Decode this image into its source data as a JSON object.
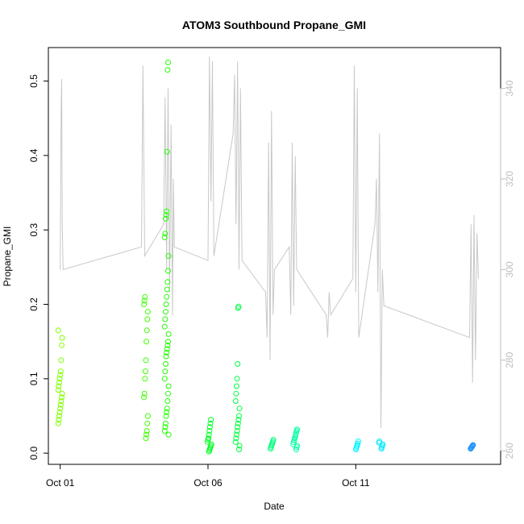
{
  "chart_data": {
    "type": "scatter",
    "title": "ATOM3 Southbound Propane_GMI",
    "xlabel": "Date",
    "ylabel": "Propane_GMI",
    "x_axis": {
      "ticks": [
        "Oct 01",
        "Oct 06",
        "Oct 11"
      ],
      "tick_values": [
        1,
        6,
        11
      ],
      "xlim": [
        0.6,
        15.9
      ]
    },
    "y_axis": {
      "ticks": [
        "0.0",
        "0.1",
        "0.2",
        "0.3",
        "0.4",
        "0.5"
      ],
      "tick_values": [
        0,
        0.1,
        0.2,
        0.3,
        0.4,
        0.5
      ],
      "ylim": [
        -0.015,
        0.545
      ]
    },
    "y2_axis": {
      "ticks": [
        "260",
        "280",
        "300",
        "320",
        "340"
      ],
      "tick_values": [
        260,
        280,
        300,
        320,
        340
      ],
      "ylim": [
        257,
        349
      ],
      "color": "#bdbdbd"
    },
    "grid": false,
    "point_clusters": [
      {
        "x": 1.0,
        "color": "#80ff00",
        "values": [
          0.04,
          0.045,
          0.05,
          0.055,
          0.06,
          0.065,
          0.07,
          0.075,
          0.08,
          0.085,
          0.09,
          0.095,
          0.1,
          0.105,
          0.11,
          0.125,
          0.145,
          0.155,
          0.165
        ]
      },
      {
        "x": 3.9,
        "color": "#3fff00",
        "values": [
          0.02,
          0.025,
          0.03,
          0.04,
          0.05,
          0.075,
          0.08,
          0.1,
          0.11,
          0.125,
          0.15,
          0.165,
          0.18,
          0.19,
          0.2,
          0.205,
          0.21
        ]
      },
      {
        "x": 4.6,
        "color": "#20ff00",
        "values": [
          0.025,
          0.03,
          0.035,
          0.04,
          0.05,
          0.055,
          0.06,
          0.07,
          0.08,
          0.09,
          0.1,
          0.11,
          0.12,
          0.13,
          0.135,
          0.14,
          0.145,
          0.15,
          0.16,
          0.17,
          0.18,
          0.19,
          0.2,
          0.21,
          0.22,
          0.23,
          0.245,
          0.265,
          0.29,
          0.295,
          0.315,
          0.32,
          0.325,
          0.405,
          0.515,
          0.525
        ]
      },
      {
        "x": 6.05,
        "color": "#00ff20",
        "values": [
          0.002,
          0.004,
          0.006,
          0.008,
          0.01,
          0.012,
          0.015,
          0.018,
          0.02,
          0.025,
          0.03,
          0.035,
          0.04,
          0.045
        ]
      },
      {
        "x": 7.0,
        "color": "#00ff40",
        "values": [
          0.005,
          0.01,
          0.015,
          0.02,
          0.025,
          0.03,
          0.035,
          0.04,
          0.045,
          0.05,
          0.06,
          0.07,
          0.08,
          0.09,
          0.1,
          0.12,
          0.195,
          0.197
        ]
      },
      {
        "x": 8.15,
        "color": "#00ff7a",
        "values": [
          0.006,
          0.008,
          0.01,
          0.012,
          0.014,
          0.016,
          0.018
        ]
      },
      {
        "x": 8.95,
        "color": "#00ffa0",
        "values": [
          0.005,
          0.008,
          0.01,
          0.012,
          0.015,
          0.018,
          0.02,
          0.022,
          0.025,
          0.028,
          0.03,
          0.032
        ]
      },
      {
        "x": 11.05,
        "color": "#00f5ff",
        "values": [
          0.005,
          0.007,
          0.009,
          0.011,
          0.013,
          0.016
        ]
      },
      {
        "x": 11.85,
        "color": "#00e6ff",
        "values": [
          0.006,
          0.008,
          0.01,
          0.012,
          0.014,
          0.016
        ]
      },
      {
        "x": 14.95,
        "color": "#1e90ff",
        "values": [
          0.006,
          0.007,
          0.008,
          0.009,
          0.01,
          0.011
        ]
      }
    ],
    "secondary_line": {
      "color": "#c8c8c8",
      "points": [
        [
          1.0,
          300
        ],
        [
          1.03,
          335
        ],
        [
          1.05,
          342
        ],
        [
          1.07,
          310
        ],
        [
          1.1,
          300
        ],
        [
          3.75,
          305
        ],
        [
          3.8,
          345
        ],
        [
          3.83,
          325
        ],
        [
          3.86,
          303
        ],
        [
          4.5,
          310
        ],
        [
          4.55,
          338
        ],
        [
          4.6,
          300
        ],
        [
          4.65,
          340
        ],
        [
          4.7,
          295
        ],
        [
          4.75,
          332
        ],
        [
          4.8,
          290
        ],
        [
          4.83,
          320
        ],
        [
          4.86,
          305
        ],
        [
          6.0,
          302
        ],
        [
          6.05,
          347
        ],
        [
          6.1,
          315
        ],
        [
          6.15,
          346
        ],
        [
          6.2,
          303
        ],
        [
          6.85,
          330
        ],
        [
          6.9,
          343
        ],
        [
          6.95,
          310
        ],
        [
          7.0,
          346
        ],
        [
          7.05,
          300
        ],
        [
          7.1,
          340
        ],
        [
          7.15,
          302
        ],
        [
          7.95,
          295
        ],
        [
          8.0,
          285
        ],
        [
          8.05,
          328
        ],
        [
          8.1,
          280
        ],
        [
          8.15,
          335
        ],
        [
          8.2,
          290
        ],
        [
          8.25,
          300
        ],
        [
          8.75,
          305
        ],
        [
          8.8,
          290
        ],
        [
          8.85,
          328
        ],
        [
          8.9,
          292
        ],
        [
          8.95,
          325
        ],
        [
          9.0,
          300
        ],
        [
          10.0,
          290
        ],
        [
          10.05,
          285
        ],
        [
          10.1,
          295
        ],
        [
          10.15,
          290
        ],
        [
          10.9,
          298
        ],
        [
          10.95,
          345
        ],
        [
          11.0,
          295
        ],
        [
          11.05,
          340
        ],
        [
          11.1,
          285
        ],
        [
          11.65,
          310
        ],
        [
          11.7,
          320
        ],
        [
          11.75,
          295
        ],
        [
          11.8,
          330
        ],
        [
          11.85,
          265
        ],
        [
          11.9,
          300
        ],
        [
          11.95,
          292
        ],
        [
          14.85,
          285
        ],
        [
          14.9,
          310
        ],
        [
          14.95,
          275
        ],
        [
          15.0,
          312
        ],
        [
          15.05,
          280
        ],
        [
          15.1,
          308
        ],
        [
          15.15,
          298
        ]
      ]
    }
  }
}
